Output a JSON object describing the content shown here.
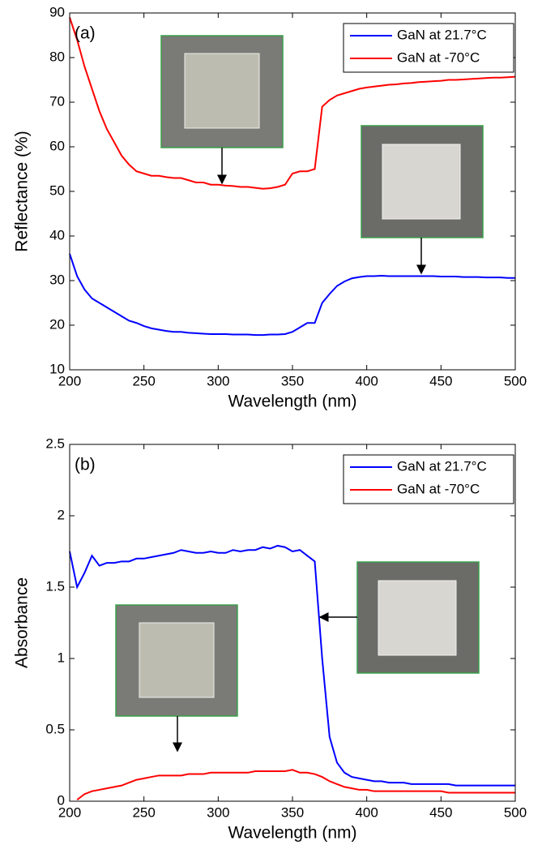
{
  "chart_data": [
    {
      "type": "line",
      "panel_label": "(a)",
      "x_label": "Wavelength (nm)",
      "y_label": "Reflectance (%)",
      "xlim": [
        200,
        500
      ],
      "xticks": [
        200,
        250,
        300,
        350,
        400,
        450,
        500
      ],
      "ylim": [
        10,
        90
      ],
      "yticks": [
        10,
        20,
        30,
        40,
        50,
        60,
        70,
        80,
        90
      ],
      "legend": "upper right",
      "x": [
        200,
        205,
        210,
        215,
        220,
        225,
        230,
        235,
        240,
        245,
        250,
        255,
        260,
        265,
        270,
        275,
        280,
        285,
        290,
        295,
        300,
        305,
        310,
        315,
        320,
        325,
        330,
        335,
        340,
        345,
        350,
        355,
        360,
        365,
        370,
        375,
        380,
        385,
        390,
        395,
        400,
        405,
        410,
        415,
        420,
        425,
        430,
        435,
        440,
        445,
        450,
        455,
        460,
        465,
        470,
        475,
        480,
        485,
        490,
        495,
        500
      ],
      "series": [
        {
          "name": "GaN at 21.7°C",
          "color": "#0000ff",
          "values": [
            36,
            31,
            28,
            26,
            25,
            24,
            23,
            22,
            21,
            20.5,
            19.8,
            19.3,
            19,
            18.7,
            18.5,
            18.5,
            18.3,
            18.2,
            18.1,
            18,
            18,
            18,
            17.9,
            17.9,
            17.9,
            17.8,
            17.8,
            17.9,
            17.9,
            18,
            18.5,
            19.5,
            20.5,
            20.5,
            25,
            27,
            28.8,
            29.8,
            30.5,
            30.8,
            31,
            31,
            31.1,
            31,
            31,
            31,
            31,
            31,
            31,
            31,
            30.9,
            30.9,
            30.9,
            30.8,
            30.8,
            30.8,
            30.7,
            30.7,
            30.7,
            30.6,
            30.6
          ]
        },
        {
          "name": "GaN at -70°C",
          "color": "#ff0000",
          "values": [
            89,
            84,
            78,
            73,
            68,
            64,
            61,
            58,
            56,
            54.5,
            54,
            53.5,
            53.5,
            53.2,
            53,
            53,
            52.5,
            52,
            52,
            51.5,
            51.5,
            51.3,
            51.2,
            51,
            51,
            50.8,
            50.6,
            50.7,
            51,
            51.5,
            54,
            54.5,
            54.5,
            55,
            69,
            70.5,
            71.5,
            72,
            72.5,
            73,
            73.3,
            73.5,
            73.7,
            73.9,
            74,
            74.2,
            74.3,
            74.5,
            74.6,
            74.7,
            74.8,
            75,
            75,
            75.1,
            75.2,
            75.3,
            75.4,
            75.5,
            75.5,
            75.6,
            75.7
          ]
        }
      ]
    },
    {
      "type": "line",
      "panel_label": "(b)",
      "x_label": "Wavelength (nm)",
      "y_label": "Absorbance",
      "xlim": [
        200,
        500
      ],
      "xticks": [
        200,
        250,
        300,
        350,
        400,
        450,
        500
      ],
      "ylim": [
        0,
        2.5
      ],
      "yticks": [
        0,
        0.5,
        1,
        1.5,
        2,
        2.5
      ],
      "legend": "upper right",
      "x": [
        200,
        205,
        210,
        215,
        220,
        225,
        230,
        235,
        240,
        245,
        250,
        255,
        260,
        265,
        270,
        275,
        280,
        285,
        290,
        295,
        300,
        305,
        310,
        315,
        320,
        325,
        330,
        335,
        340,
        345,
        350,
        355,
        360,
        365,
        370,
        375,
        380,
        385,
        390,
        395,
        400,
        405,
        410,
        415,
        420,
        425,
        430,
        435,
        440,
        445,
        450,
        455,
        460,
        465,
        470,
        475,
        480,
        485,
        490,
        495,
        500
      ],
      "series": [
        {
          "name": "GaN at 21.7°C",
          "color": "#0000ff",
          "values": [
            1.75,
            1.5,
            1.6,
            1.72,
            1.65,
            1.67,
            1.67,
            1.68,
            1.68,
            1.7,
            1.7,
            1.71,
            1.72,
            1.73,
            1.74,
            1.76,
            1.75,
            1.74,
            1.74,
            1.75,
            1.74,
            1.74,
            1.76,
            1.75,
            1.76,
            1.76,
            1.78,
            1.77,
            1.79,
            1.78,
            1.75,
            1.76,
            1.72,
            1.68,
            1.0,
            0.45,
            0.27,
            0.2,
            0.17,
            0.16,
            0.15,
            0.14,
            0.14,
            0.13,
            0.13,
            0.13,
            0.12,
            0.12,
            0.12,
            0.12,
            0.12,
            0.12,
            0.11,
            0.11,
            0.11,
            0.11,
            0.11,
            0.11,
            0.11,
            0.11,
            0.11
          ]
        },
        {
          "name": "GaN at -70°C",
          "color": "#ff0000",
          "values": [
            null,
            0.01,
            0.05,
            0.07,
            0.08,
            0.09,
            0.1,
            0.11,
            0.13,
            0.15,
            0.16,
            0.17,
            0.18,
            0.18,
            0.18,
            0.18,
            0.19,
            0.19,
            0.19,
            0.2,
            0.2,
            0.2,
            0.2,
            0.2,
            0.2,
            0.21,
            0.21,
            0.21,
            0.21,
            0.21,
            0.22,
            0.2,
            0.2,
            0.19,
            0.17,
            0.14,
            0.12,
            0.1,
            0.09,
            0.08,
            0.08,
            0.07,
            0.07,
            0.07,
            0.07,
            0.07,
            0.07,
            0.07,
            0.07,
            0.07,
            0.07,
            0.06,
            0.06,
            0.06,
            0.06,
            0.06,
            0.06,
            0.06,
            0.06,
            0.06,
            0.06
          ]
        }
      ]
    }
  ]
}
